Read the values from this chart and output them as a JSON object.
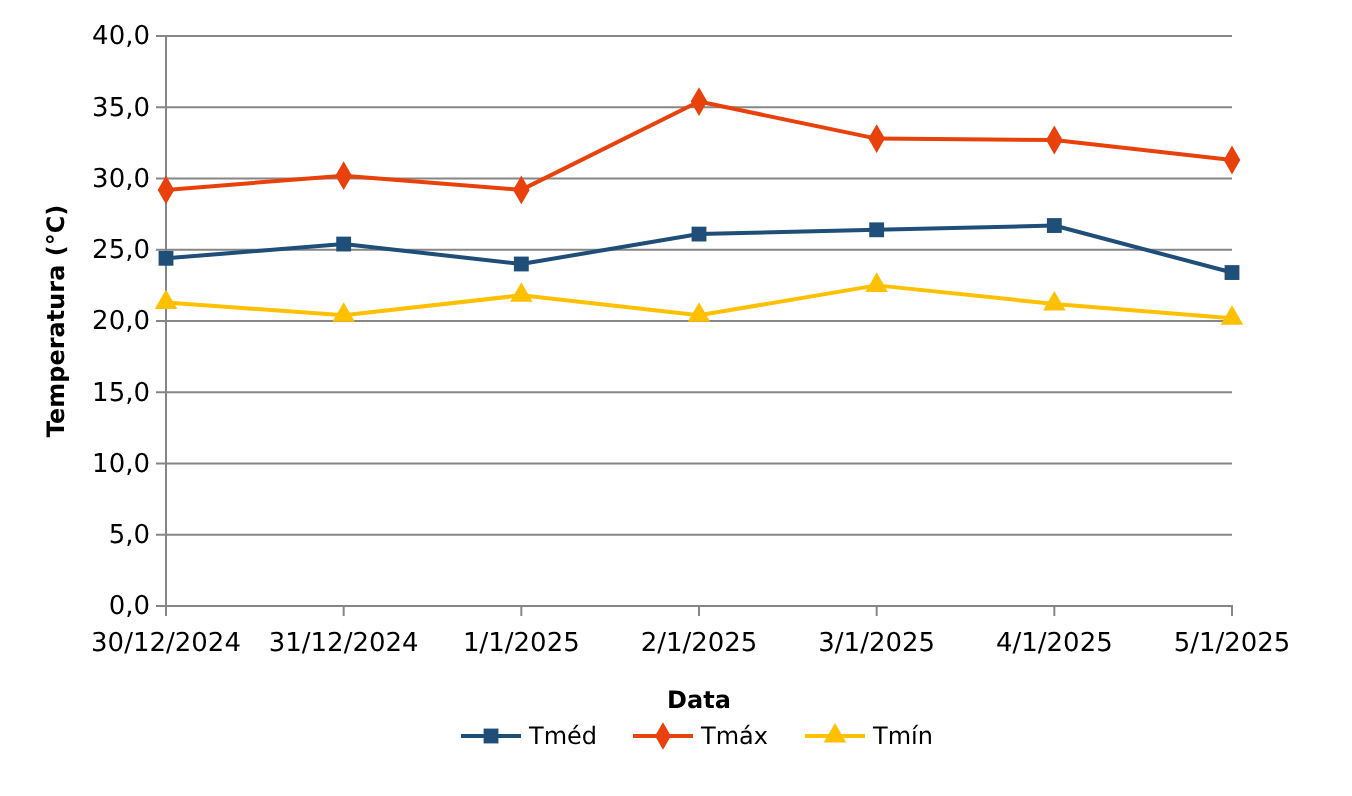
{
  "chart_data": {
    "type": "line",
    "xlabel": "Data",
    "ylabel": "Temperatura (°C)",
    "categories": [
      "30/12/2024",
      "31/12/2024",
      "1/1/2025",
      "2/1/2025",
      "3/1/2025",
      "4/1/2025",
      "5/1/2025"
    ],
    "series": [
      {
        "name": "Tméd",
        "color": "#1f4e79",
        "marker": "square",
        "values": [
          24.4,
          25.4,
          24.0,
          26.1,
          26.4,
          26.7,
          23.4
        ]
      },
      {
        "name": "Tmáx",
        "color": "#e8410c",
        "marker": "diamond",
        "values": [
          29.2,
          30.2,
          29.2,
          35.4,
          32.8,
          32.7,
          31.3
        ]
      },
      {
        "name": "Tmín",
        "color": "#ffc000",
        "marker": "triangle",
        "values": [
          21.3,
          20.4,
          21.8,
          20.4,
          22.5,
          21.2,
          20.2
        ]
      }
    ],
    "ylim": [
      0,
      40
    ],
    "yticks": [
      {
        "value": 0,
        "label": "0,0"
      },
      {
        "value": 5,
        "label": "5,0"
      },
      {
        "value": 10,
        "label": "10,0"
      },
      {
        "value": 15,
        "label": "15,0"
      },
      {
        "value": 20,
        "label": "20,0"
      },
      {
        "value": 25,
        "label": "25,0"
      },
      {
        "value": 30,
        "label": "30,0"
      },
      {
        "value": 35,
        "label": "35,0"
      },
      {
        "value": 40,
        "label": "40,0"
      }
    ],
    "grid": "y",
    "legend": "bottom",
    "line_style": "solid"
  }
}
